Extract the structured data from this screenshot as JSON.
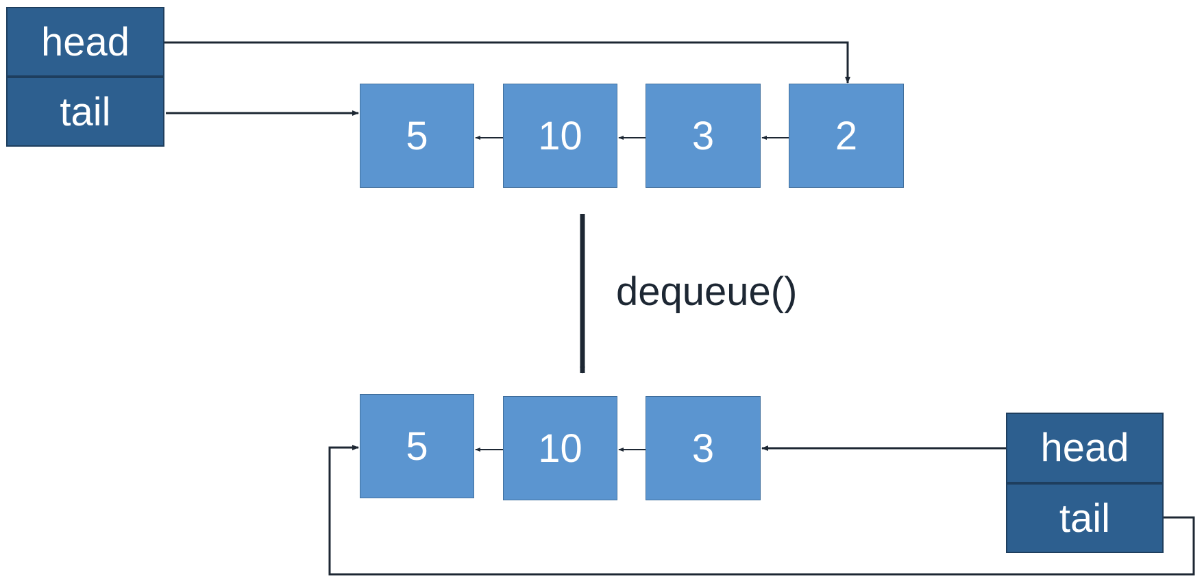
{
  "before": {
    "pointer_labels": {
      "head": "head",
      "tail": "tail"
    },
    "nodes": [
      "5",
      "10",
      "3",
      "2"
    ]
  },
  "operation": "dequeue()",
  "after": {
    "pointer_labels": {
      "head": "head",
      "tail": "tail"
    },
    "nodes": [
      "5",
      "10",
      "3"
    ]
  },
  "colors": {
    "pointer_box": "#2d5f8f",
    "node_fill": "#5b95d0",
    "arrow": "#1d2733"
  }
}
